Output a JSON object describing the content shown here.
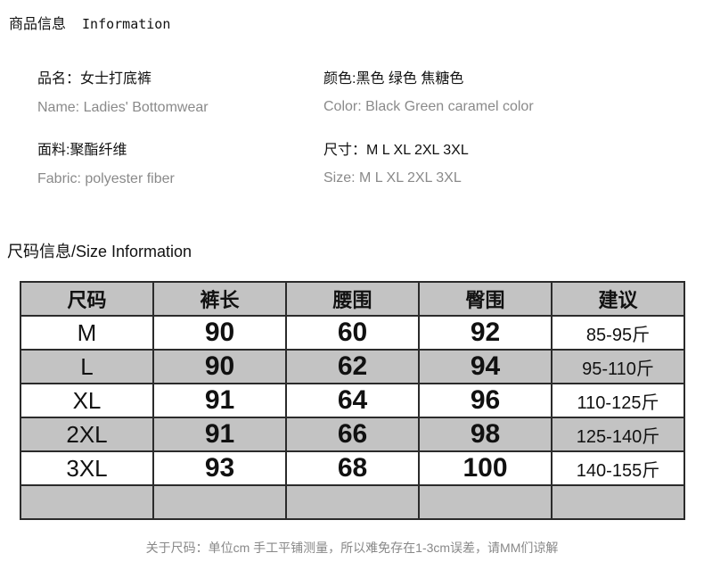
{
  "product_info": {
    "title_zh": "商品信息",
    "title_en": "Information",
    "name_zh": "品名：女士打底裤",
    "name_en": "Name: Ladies' Bottomwear",
    "color_zh": "颜色:黑色  绿色  焦糖色",
    "color_en": "Color: Black Green caramel color",
    "fabric_zh": "面料:聚酯纤维",
    "fabric_en": "Fabric: polyester fiber",
    "size_zh": "尺寸：M  L  XL  2XL  3XL",
    "size_en": "Size: M L XL 2XL 3XL"
  },
  "size_info": {
    "title": "尺码信息/Size Information",
    "headers": [
      "尺码",
      "裤长",
      "腰围",
      "臀围",
      "建议"
    ],
    "rows": [
      [
        "M",
        "90",
        "60",
        "92",
        "85-95斤"
      ],
      [
        "L",
        "90",
        "62",
        "94",
        "95-110斤"
      ],
      [
        "XL",
        "91",
        "64",
        "96",
        "110-125斤"
      ],
      [
        "2XL",
        "91",
        "66",
        "98",
        "125-140斤"
      ],
      [
        "3XL",
        "93",
        "68",
        "100",
        "140-155斤"
      ]
    ],
    "note": "关于尺码：单位cm  手工平铺测量，所以难免存在1-3cm误差，请MM们谅解"
  },
  "colors": {
    "row_gray": "#c3c3c3",
    "border": "#2b2b2b",
    "secondary_text": "#8a8a8a"
  }
}
